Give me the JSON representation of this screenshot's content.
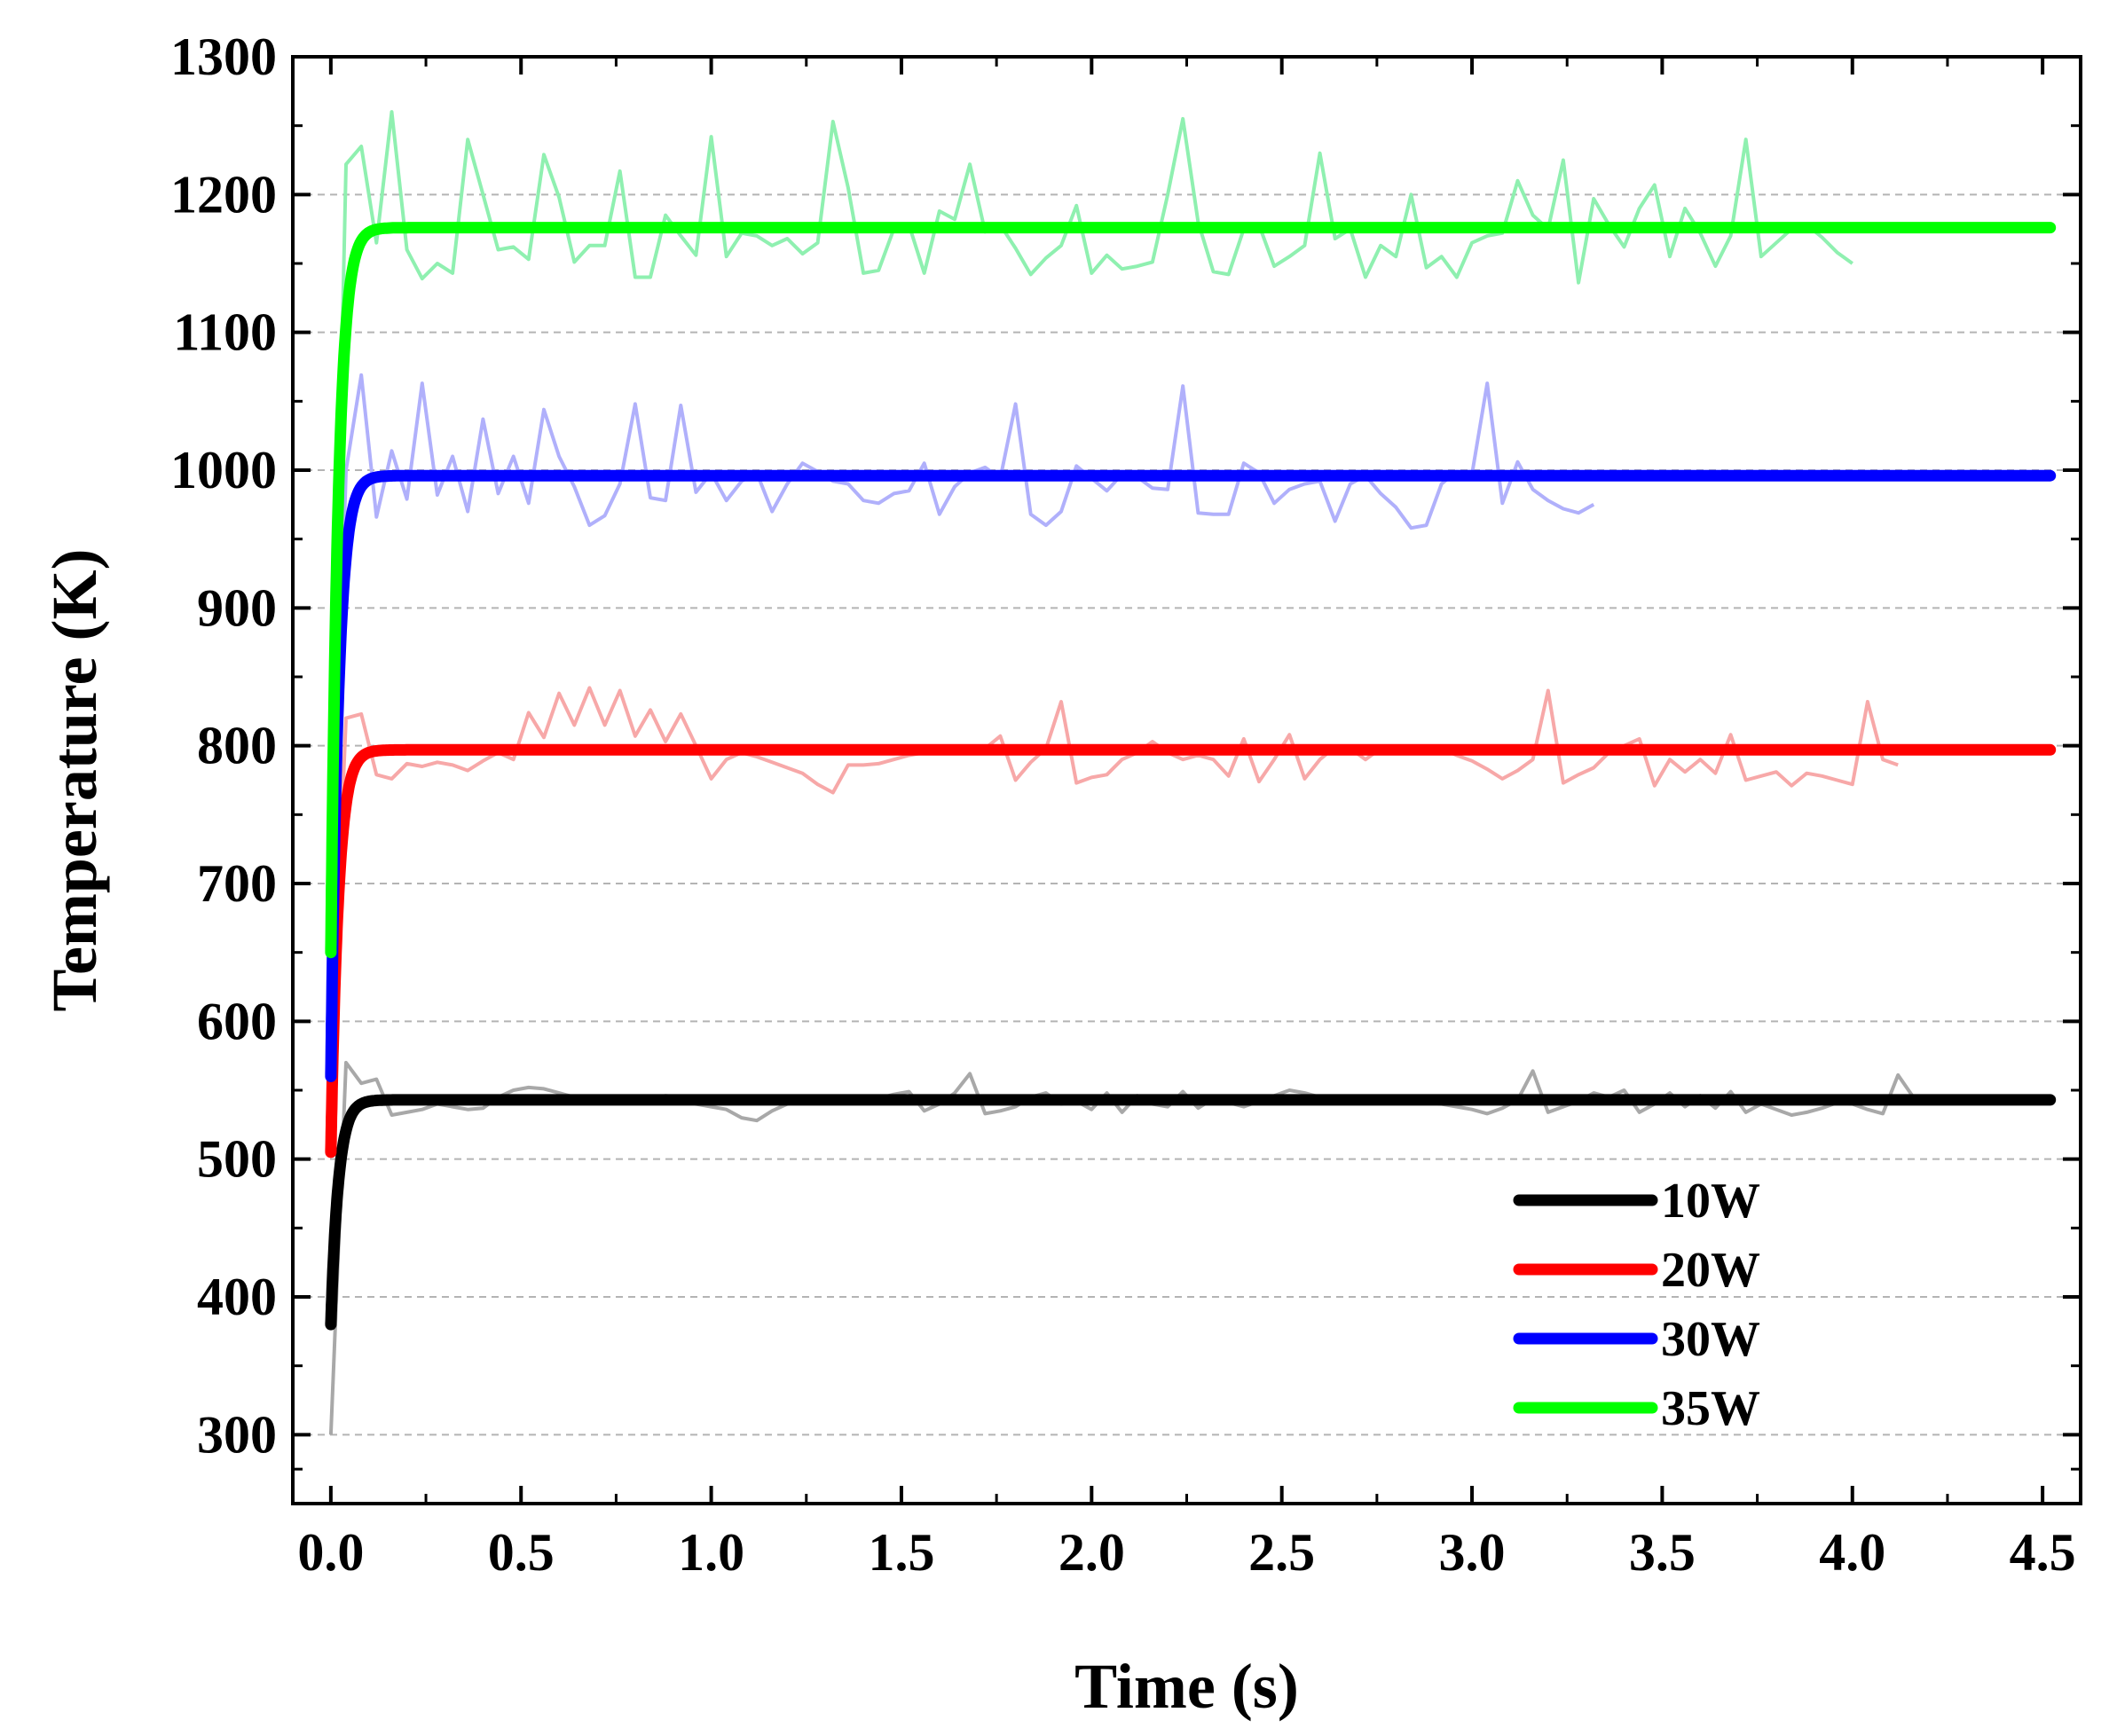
{
  "chart_data": {
    "type": "line",
    "title": "",
    "xlabel": "Time (s)",
    "ylabel": "Temperature (K)",
    "xlim": [
      -0.1,
      4.6
    ],
    "ylim": [
      250,
      1300
    ],
    "xticks": [
      0.0,
      0.5,
      1.0,
      1.5,
      2.0,
      2.5,
      3.0,
      3.5,
      4.0,
      4.5
    ],
    "xtick_labels": [
      "0.0",
      "0.5",
      "1.0",
      "1.5",
      "2.0",
      "2.5",
      "3.0",
      "3.5",
      "4.0",
      "4.5"
    ],
    "yticks": [
      300,
      400,
      500,
      600,
      700,
      800,
      900,
      1000,
      1100,
      1200,
      1300
    ],
    "ytick_labels": [
      "300",
      "400",
      "500",
      "600",
      "700",
      "800",
      "900",
      "1000",
      "1100",
      "1200",
      "1300"
    ],
    "grid": "horizontal dashed",
    "legend_position": "bottom-right",
    "series": [
      {
        "name": "10W",
        "color": "#000000",
        "raw_color": "#a8a8a8",
        "fit": {
          "start": 380,
          "plateau": 543,
          "tau": 0.02,
          "x_end": 4.52
        },
        "raw": {
          "x_start": 0.0,
          "dx": 0.04,
          "values": [
            300,
            570,
            555,
            558,
            532,
            534,
            536,
            540,
            538,
            536,
            537,
            545,
            550,
            552,
            551,
            548,
            545,
            544,
            542,
            543,
            541,
            544,
            546,
            545,
            540,
            538,
            536,
            530,
            528,
            535,
            540,
            542,
            544,
            545,
            543,
            542,
            544,
            547,
            549,
            535,
            540,
            548,
            562,
            533,
            535,
            538,
            545,
            548,
            540,
            542,
            536,
            548,
            534,
            546,
            540,
            538,
            549,
            537,
            544,
            541,
            538,
            542,
            546,
            550,
            548,
            545,
            543,
            544,
            541,
            542,
            545,
            544,
            541,
            540,
            538,
            536,
            533,
            537,
            543,
            564,
            534,
            538,
            542,
            548,
            545,
            550,
            534,
            540,
            548,
            538,
            546,
            537,
            549,
            534,
            540,
            536,
            532,
            534,
            537,
            541,
            540,
            536,
            533,
            561,
            545,
            541
          ]
        }
      },
      {
        "name": "20W",
        "color": "#ff0000",
        "raw_color": "#f7a8a8",
        "fit": {
          "start": 505,
          "plateau": 797,
          "tau": 0.02,
          "x_end": 4.52
        },
        "raw": {
          "x_start": 0.0,
          "dx": 0.04,
          "values": [
            560,
            820,
            823,
            779,
            776,
            787,
            785,
            788,
            786,
            782,
            789,
            795,
            790,
            824,
            806,
            838,
            815,
            842,
            815,
            840,
            807,
            826,
            803,
            823,
            800,
            776,
            790,
            795,
            792,
            788,
            784,
            780,
            772,
            766,
            786,
            786,
            787,
            790,
            793,
            795,
            796,
            797,
            798,
            798,
            807,
            775,
            788,
            798,
            832,
            773,
            777,
            779,
            790,
            795,
            803,
            795,
            790,
            793,
            790,
            778,
            805,
            774,
            790,
            808,
            776,
            790,
            799,
            798,
            790,
            798,
            796,
            797,
            799,
            798,
            793,
            789,
            783,
            776,
            782,
            790,
            840,
            773,
            779,
            784,
            795,
            800,
            805,
            771,
            790,
            781,
            790,
            780,
            808,
            775,
            778,
            781,
            771,
            780,
            778,
            775,
            772,
            832,
            790,
            786
          ]
        }
      },
      {
        "name": "30W",
        "color": "#0000ff",
        "raw_color": "#b0b0fb",
        "fit": {
          "start": 560,
          "plateau": 996,
          "tau": 0.02,
          "x_end": 4.52
        },
        "raw": {
          "x_start": 0.0,
          "dx": 0.04,
          "values": [
            650,
            1000,
            1069,
            966,
            1014,
            979,
            1063,
            982,
            1010,
            970,
            1037,
            983,
            1010,
            976,
            1044,
            1010,
            988,
            960,
            967,
            990,
            1048,
            980,
            978,
            1047,
            984,
            998,
            978,
            992,
            998,
            970,
            990,
            1005,
            999,
            992,
            990,
            978,
            976,
            983,
            985,
            1005,
            968,
            988,
            998,
            1002,
            994,
            1048,
            968,
            960,
            970,
            1003,
            994,
            985,
            997,
            995,
            987,
            986,
            1061,
            969,
            968,
            968,
            1005,
            998,
            976,
            986,
            990,
            992,
            963,
            990,
            996,
            983,
            973,
            958,
            960,
            990,
            999,
            997,
            1063,
            976,
            1006,
            986,
            978,
            972,
            969,
            975
          ]
        }
      },
      {
        "name": "35W",
        "color": "#00ff00",
        "raw_color": "#8ff0b0",
        "fit": {
          "start": 650,
          "plateau": 1176,
          "tau": 0.02,
          "x_end": 4.52
        },
        "raw": {
          "x_start": 0.0,
          "dx": 0.04,
          "values": [
            720,
            1222,
            1235,
            1165,
            1260,
            1160,
            1139,
            1150,
            1143,
            1240,
            1200,
            1160,
            1162,
            1153,
            1229,
            1198,
            1151,
            1163,
            1163,
            1217,
            1140,
            1140,
            1185,
            1170,
            1156,
            1242,
            1155,
            1172,
            1170,
            1163,
            1168,
            1157,
            1165,
            1253,
            1205,
            1143,
            1145,
            1175,
            1178,
            1143,
            1188,
            1182,
            1222,
            1173,
            1178,
            1161,
            1142,
            1154,
            1163,
            1192,
            1143,
            1156,
            1146,
            1148,
            1151,
            1200,
            1255,
            1180,
            1144,
            1142,
            1175,
            1178,
            1148,
            1155,
            1163,
            1230,
            1168,
            1175,
            1140,
            1163,
            1155,
            1200,
            1147,
            1155,
            1140,
            1165,
            1170,
            1172,
            1210,
            1185,
            1175,
            1225,
            1136,
            1197,
            1178,
            1162,
            1190,
            1207,
            1155,
            1190,
            1172,
            1148,
            1170,
            1240,
            1155,
            1165,
            1175,
            1178,
            1169,
            1158,
            1150
          ]
        }
      }
    ]
  }
}
